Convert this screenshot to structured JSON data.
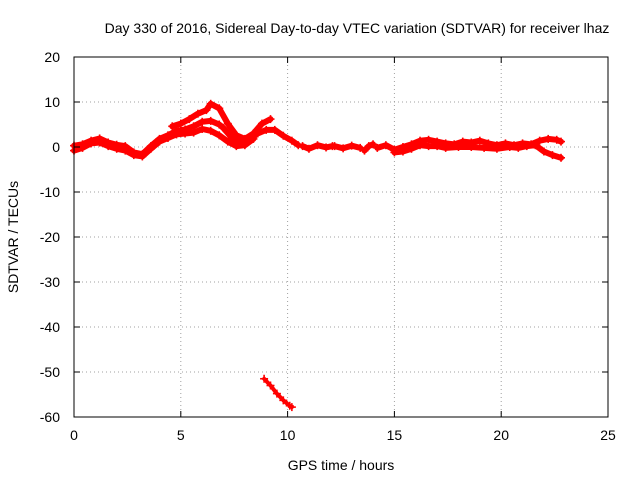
{
  "chart_data": {
    "type": "scatter",
    "title": "Day 330 of 2016, Sidereal Day-to-day VTEC variation (SDTVAR) for receiver lhaz",
    "xlabel": "GPS time / hours",
    "ylabel": "SDTVAR / TECUs",
    "xlim": [
      0,
      25
    ],
    "ylim": [
      -60,
      20
    ],
    "xticks": [
      0,
      5,
      10,
      15,
      20,
      25
    ],
    "yticks": [
      20,
      10,
      0,
      -10,
      -20,
      -30,
      -40,
      -50,
      -60
    ],
    "grid": true,
    "color": "#ff0000",
    "series": [
      {
        "name": "band-main",
        "points": [
          [
            0,
            0.3
          ],
          [
            0.4,
            0.6
          ],
          [
            0.8,
            1.4
          ],
          [
            1.2,
            1.9
          ],
          [
            1.6,
            1.0
          ],
          [
            2.0,
            0.5
          ],
          [
            2.4,
            0.2
          ],
          [
            2.8,
            -1.2
          ],
          [
            3.2,
            -1.6
          ],
          [
            3.6,
            0.2
          ],
          [
            4.0,
            1.8
          ],
          [
            4.4,
            2.6
          ],
          [
            4.8,
            3.6
          ],
          [
            5.2,
            3.9
          ],
          [
            5.6,
            4.6
          ],
          [
            6.0,
            5.6
          ],
          [
            6.4,
            5.8
          ],
          [
            6.8,
            5.0
          ],
          [
            7.0,
            4.2
          ],
          [
            7.4,
            2.0
          ],
          [
            7.8,
            0.8
          ],
          [
            8.2,
            1.6
          ],
          [
            8.6,
            3.0
          ],
          [
            9.0,
            3.8
          ],
          [
            9.4,
            3.8
          ],
          [
            9.8,
            2.5
          ],
          [
            10.2,
            1.4
          ],
          [
            10.5,
            0.4
          ]
        ]
      },
      {
        "name": "band-upper",
        "points": [
          [
            4.6,
            4.6
          ],
          [
            5.0,
            5.2
          ],
          [
            5.4,
            6.2
          ],
          [
            5.8,
            7.4
          ],
          [
            6.2,
            8.2
          ],
          [
            6.4,
            9.6
          ],
          [
            6.8,
            8.6
          ],
          [
            7.2,
            5.2
          ],
          [
            7.6,
            2.6
          ],
          [
            8.0,
            1.8
          ],
          [
            8.4,
            3.0
          ],
          [
            8.8,
            5.2
          ],
          [
            9.2,
            6.2
          ]
        ]
      },
      {
        "name": "band-lower",
        "points": [
          [
            0,
            -0.8
          ],
          [
            0.4,
            -0.2
          ],
          [
            0.8,
            0.8
          ],
          [
            1.2,
            1.0
          ],
          [
            1.6,
            0.2
          ],
          [
            2.0,
            -0.4
          ],
          [
            2.4,
            -0.8
          ],
          [
            2.8,
            -1.8
          ],
          [
            3.2,
            -2.1
          ],
          [
            3.6,
            -0.4
          ],
          [
            4.0,
            1.2
          ],
          [
            4.4,
            2.0
          ],
          [
            4.8,
            2.8
          ],
          [
            5.2,
            3.0
          ],
          [
            5.6,
            3.2
          ],
          [
            6.0,
            4.0
          ],
          [
            6.4,
            3.6
          ],
          [
            6.8,
            2.6
          ],
          [
            7.2,
            1.2
          ],
          [
            7.6,
            0.2
          ],
          [
            8.0,
            0.4
          ],
          [
            8.4,
            1.8
          ]
        ]
      },
      {
        "name": "segment-10-11",
        "points": [
          [
            10.7,
            0.2
          ],
          [
            11.0,
            -0.4
          ],
          [
            11.4,
            0.4
          ],
          [
            11.8,
            -0.1
          ],
          [
            12.1,
            0.2
          ]
        ]
      },
      {
        "name": "segment-12-13",
        "points": [
          [
            12.2,
            0.2
          ],
          [
            12.6,
            -0.3
          ],
          [
            13.0,
            0.3
          ],
          [
            13.4,
            -0.2
          ]
        ]
      },
      {
        "name": "segment-13-5",
        "points": [
          [
            13.6,
            -0.8
          ],
          [
            13.8,
            0.2
          ],
          [
            14.0,
            0.6
          ]
        ]
      },
      {
        "name": "band-afternoon",
        "points": [
          [
            14.2,
            -0.2
          ],
          [
            14.6,
            0.4
          ],
          [
            15.0,
            -0.6
          ],
          [
            15.4,
            0.0
          ],
          [
            15.8,
            0.6
          ],
          [
            16.2,
            1.4
          ],
          [
            16.6,
            1.6
          ],
          [
            17.0,
            1.2
          ],
          [
            17.4,
            0.8
          ],
          [
            17.8,
            0.6
          ],
          [
            18.2,
            1.2
          ],
          [
            18.6,
            1.0
          ],
          [
            19.0,
            1.4
          ],
          [
            19.4,
            0.8
          ],
          [
            19.8,
            0.4
          ],
          [
            20.2,
            0.8
          ],
          [
            20.6,
            0.4
          ],
          [
            21.0,
            0.8
          ],
          [
            21.4,
            0.6
          ],
          [
            21.8,
            1.4
          ],
          [
            22.2,
            1.8
          ],
          [
            22.6,
            1.6
          ],
          [
            22.8,
            1.2
          ]
        ]
      },
      {
        "name": "band-afternoon-lower",
        "points": [
          [
            15.0,
            -1.2
          ],
          [
            15.4,
            -1.0
          ],
          [
            15.8,
            -0.4
          ],
          [
            16.2,
            0.4
          ],
          [
            16.6,
            0.2
          ],
          [
            17.0,
            0.2
          ],
          [
            17.4,
            -0.2
          ],
          [
            18.0,
            0.0
          ],
          [
            18.6,
            0.0
          ],
          [
            19.2,
            -0.2
          ],
          [
            19.8,
            -0.4
          ],
          [
            20.4,
            0.0
          ],
          [
            20.8,
            -0.2
          ],
          [
            21.2,
            0.2
          ],
          [
            21.6,
            0.4
          ],
          [
            22.0,
            -1.0
          ],
          [
            22.4,
            -1.8
          ],
          [
            22.8,
            -2.4
          ]
        ]
      },
      {
        "name": "outlier-drop",
        "points": [
          [
            8.9,
            -51.5
          ],
          [
            9.2,
            -53.0
          ],
          [
            9.5,
            -54.8
          ],
          [
            9.8,
            -56.3
          ],
          [
            10.1,
            -57.5
          ],
          [
            10.2,
            -57.8
          ]
        ]
      }
    ]
  }
}
